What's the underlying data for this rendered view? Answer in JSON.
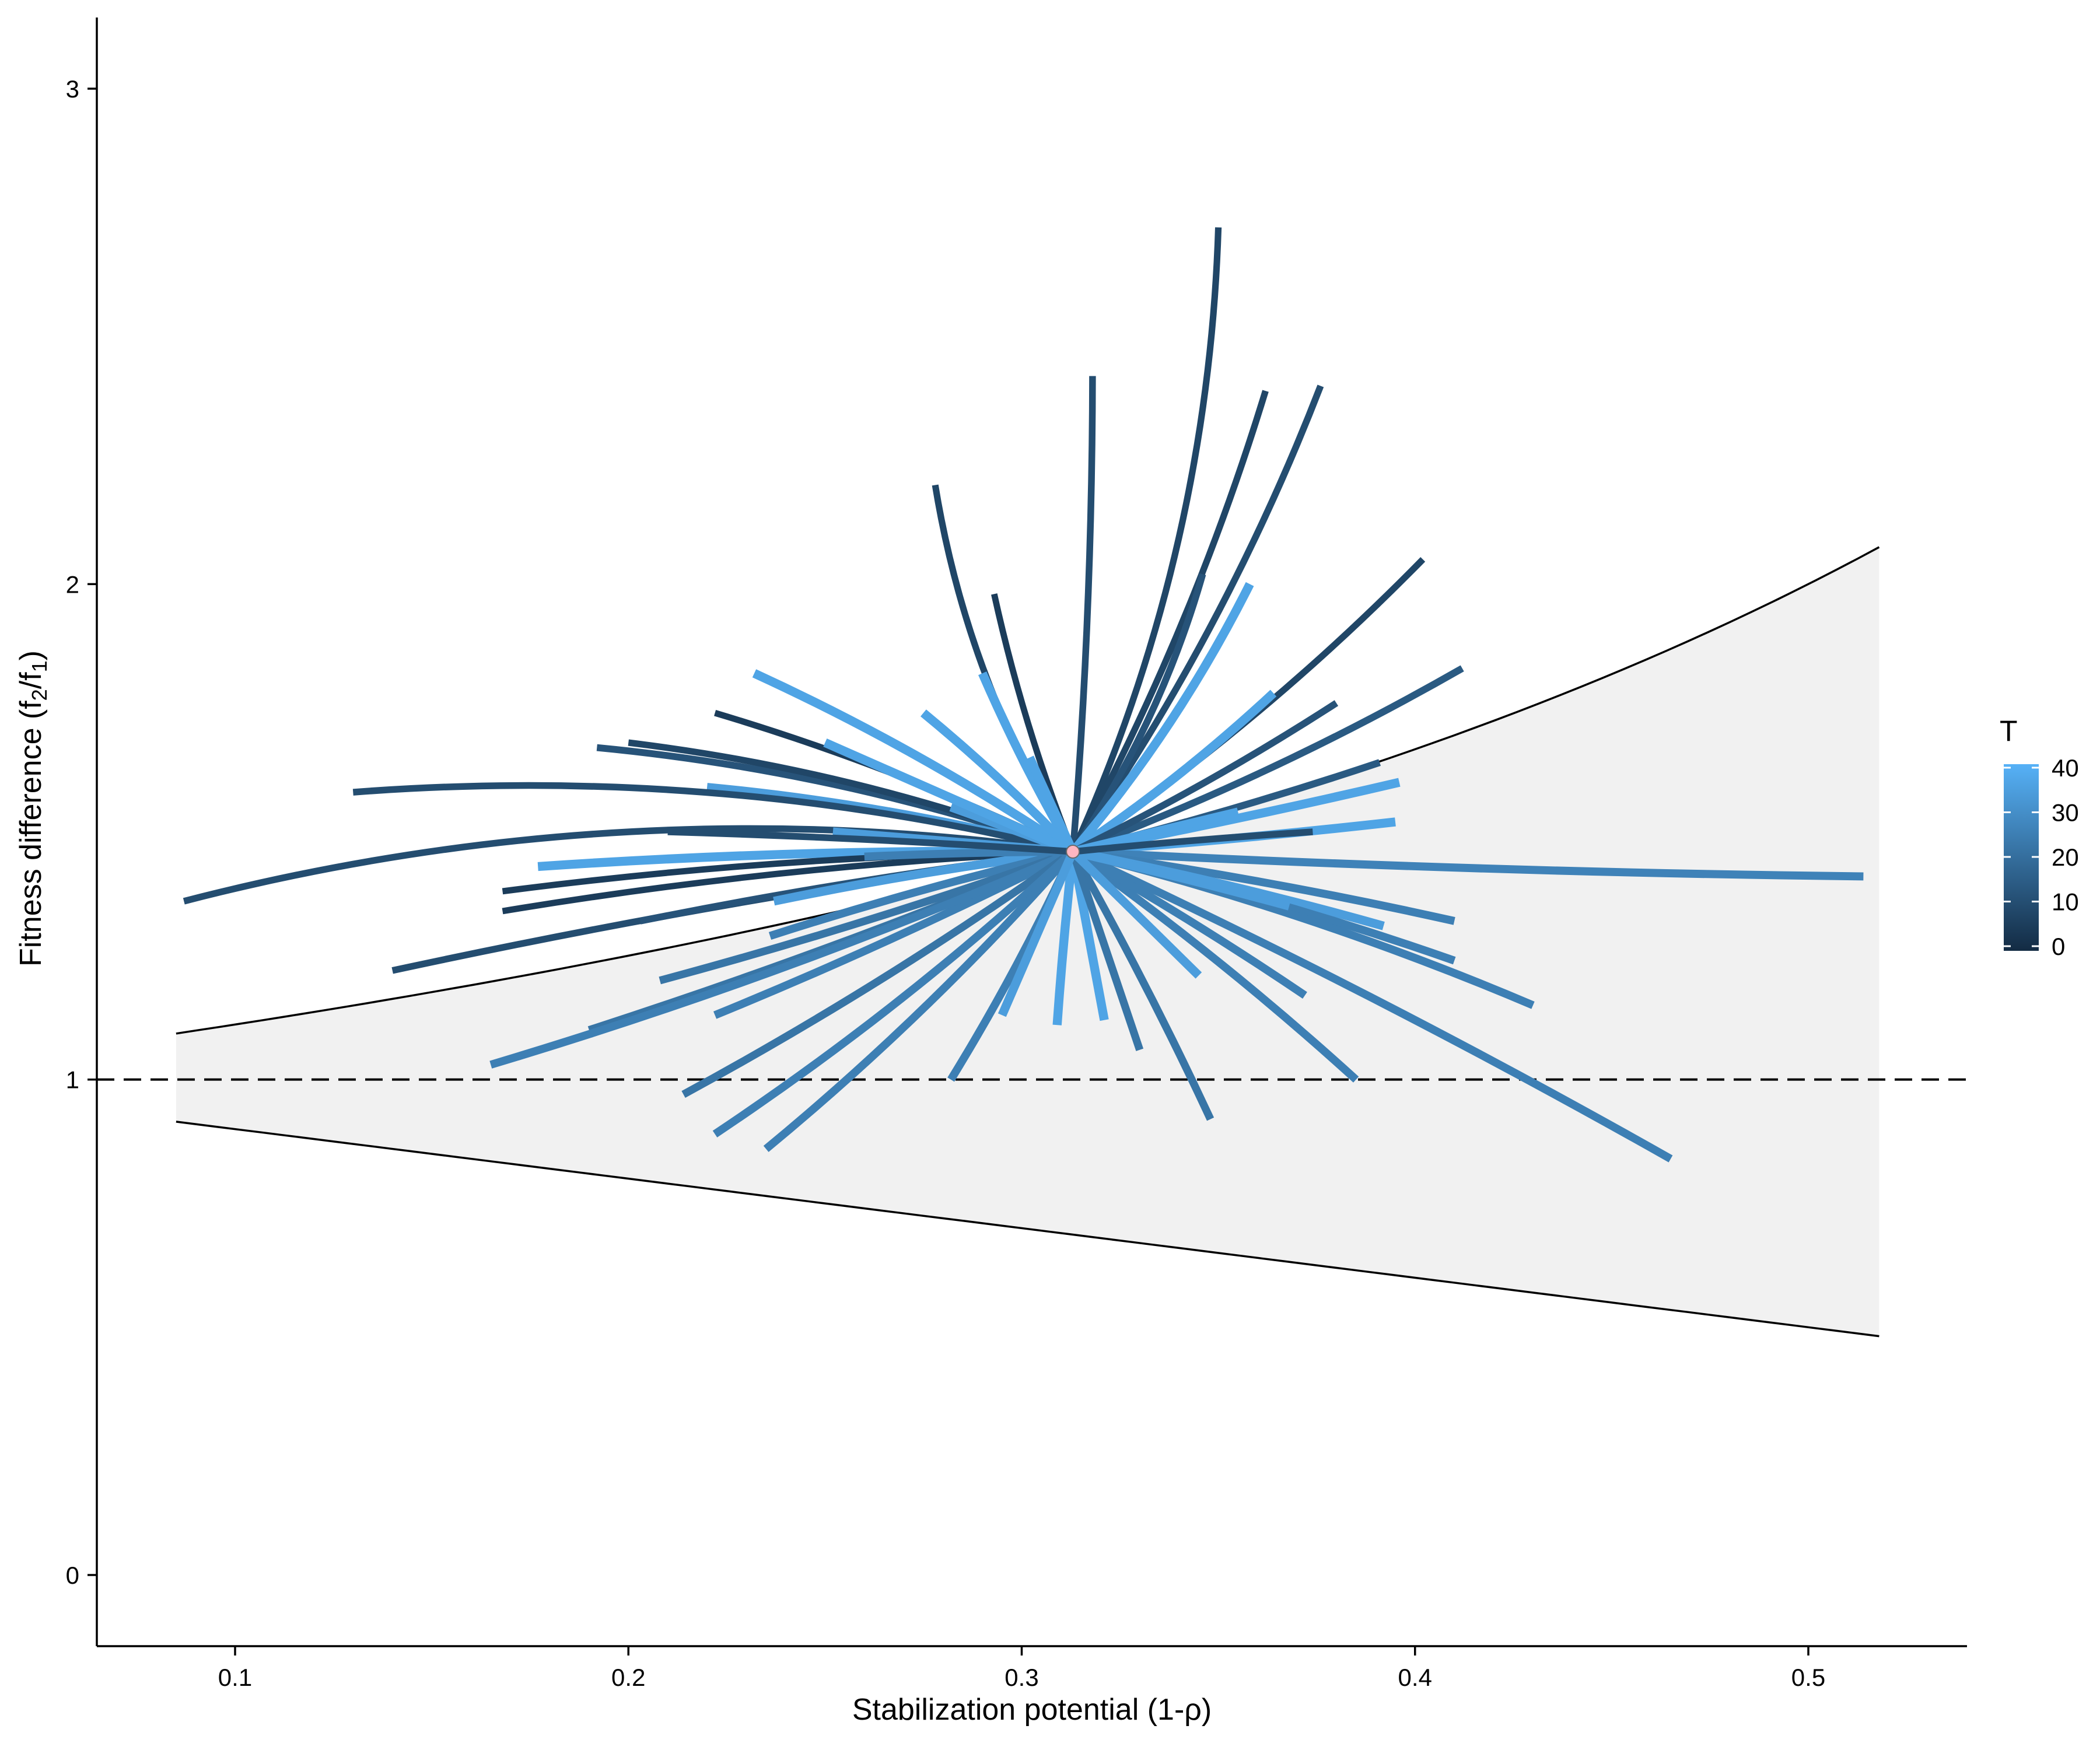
{
  "chart_data": {
    "type": "line",
    "xlabel": "Stabilization potential (1-ρ)",
    "ylabel": "Fitness difference (f2/f1)",
    "xlim": [
      0.065,
      0.54
    ],
    "ylim": [
      -0.15,
      3.15
    ],
    "x_ticks": [
      0.1,
      0.2,
      0.3,
      0.4,
      0.5
    ],
    "x_tick_labels": [
      "0.1",
      "0.2",
      "0.3",
      "0.4",
      "0.5"
    ],
    "y_ticks": [
      0,
      1,
      2,
      3
    ],
    "y_tick_labels": [
      "0",
      "1",
      "2",
      "3"
    ],
    "grid": false,
    "reference_line": {
      "y": 1,
      "style": "dashed"
    },
    "coexistence_region": {
      "x_range": [
        0.085,
        0.518
      ],
      "formula_upper": "1/(1-x)",
      "formula_lower": "1-x",
      "fill": "#f1f1f1"
    },
    "center_point": {
      "x": 0.313,
      "y": 1.46,
      "color": "#ffb6c1"
    },
    "legend": {
      "title": "T",
      "position": "right",
      "type": "colorbar",
      "range": [
        0,
        40
      ],
      "ticks": [
        0,
        10,
        20,
        30,
        40
      ],
      "tick_labels": [
        "0",
        "10",
        "20",
        "30",
        "40"
      ],
      "color_low": "#132B43",
      "color_high": "#56B1F7"
    },
    "series": [
      {
        "T": 8,
        "end": [
          0.35,
          2.72
        ],
        "bend": 0.1
      },
      {
        "T": 10,
        "end": [
          0.318,
          2.42
        ],
        "bend": 0.02
      },
      {
        "T": 8,
        "end": [
          0.362,
          2.39
        ],
        "bend": 0.05
      },
      {
        "T": 10,
        "end": [
          0.376,
          2.4
        ],
        "bend": 0.06
      },
      {
        "T": 8,
        "end": [
          0.278,
          2.2
        ],
        "bend": -0.1
      },
      {
        "T": 8,
        "end": [
          0.402,
          2.05
        ],
        "bend": 0.05
      },
      {
        "T": 5,
        "end": [
          0.293,
          1.98
        ],
        "bend": -0.04
      },
      {
        "T": 12,
        "end": [
          0.346,
          2.02
        ],
        "bend": 0.08
      },
      {
        "T": 36,
        "end": [
          0.358,
          2.0
        ],
        "bend": 0.06
      },
      {
        "T": 14,
        "end": [
          0.412,
          1.83
        ],
        "bend": 0.04
      },
      {
        "T": 36,
        "end": [
          0.232,
          1.82
        ],
        "bend": 0.04
      },
      {
        "T": 36,
        "end": [
          0.29,
          1.82
        ],
        "bend": -0.03
      },
      {
        "T": 36,
        "end": [
          0.364,
          1.78
        ],
        "bend": 0.04
      },
      {
        "T": 5,
        "end": [
          0.222,
          1.74
        ],
        "bend": 0.04
      },
      {
        "T": 36,
        "end": [
          0.275,
          1.74
        ],
        "bend": 0.03
      },
      {
        "T": 12,
        "end": [
          0.38,
          1.76
        ],
        "bend": 0.03
      },
      {
        "T": 12,
        "end": [
          0.192,
          1.67
        ],
        "bend": 0.06
      },
      {
        "T": 8,
        "end": [
          0.2,
          1.68
        ],
        "bend": 0.06
      },
      {
        "T": 14,
        "end": [
          0.391,
          1.64
        ],
        "bend": 0.02
      },
      {
        "T": 34,
        "end": [
          0.22,
          1.59
        ],
        "bend": 0.04
      },
      {
        "T": 36,
        "end": [
          0.396,
          1.6
        ],
        "bend": 0.01
      },
      {
        "T": 10,
        "end": [
          0.13,
          1.58
        ],
        "bend": 0.08
      },
      {
        "T": 36,
        "end": [
          0.395,
          1.52
        ],
        "bend": 0.01
      },
      {
        "T": 10,
        "end": [
          0.087,
          1.36
        ],
        "bend": 0.1
      },
      {
        "T": 26,
        "end": [
          0.514,
          1.41
        ],
        "bend": 0.01
      },
      {
        "T": 36,
        "end": [
          0.177,
          1.43
        ],
        "bend": 0.02
      },
      {
        "T": 5,
        "end": [
          0.168,
          1.38
        ],
        "bend": 0.03
      },
      {
        "T": 5,
        "end": [
          0.168,
          1.34
        ],
        "bend": 0.03
      },
      {
        "T": 10,
        "end": [
          0.14,
          1.22
        ],
        "bend": 0.02
      },
      {
        "T": 12,
        "end": [
          0.203,
          1.32
        ],
        "bend": 0.02
      },
      {
        "T": 34,
        "end": [
          0.237,
          1.36
        ],
        "bend": 0.02
      },
      {
        "T": 25,
        "end": [
          0.236,
          1.29
        ],
        "bend": 0.02
      },
      {
        "T": 25,
        "end": [
          0.41,
          1.32
        ],
        "bend": -0.02
      },
      {
        "T": 34,
        "end": [
          0.392,
          1.31
        ],
        "bend": -0.02
      },
      {
        "T": 25,
        "end": [
          0.41,
          1.24
        ],
        "bend": -0.03
      },
      {
        "T": 25,
        "end": [
          0.43,
          1.15
        ],
        "bend": -0.04
      },
      {
        "T": 22,
        "end": [
          0.208,
          1.2
        ],
        "bend": -0.02
      },
      {
        "T": 22,
        "end": [
          0.19,
          1.1
        ],
        "bend": -0.02
      },
      {
        "T": 25,
        "end": [
          0.222,
          1.13
        ],
        "bend": -0.02
      },
      {
        "T": 25,
        "end": [
          0.165,
          1.03
        ],
        "bend": -0.03
      },
      {
        "T": 25,
        "end": [
          0.385,
          1.0
        ],
        "bend": -0.03
      },
      {
        "T": 22,
        "end": [
          0.214,
          0.97
        ],
        "bend": -0.03
      },
      {
        "T": 25,
        "end": [
          0.282,
          1.0
        ],
        "bend": -0.03
      },
      {
        "T": 25,
        "end": [
          0.222,
          0.89
        ],
        "bend": -0.04
      },
      {
        "T": 25,
        "end": [
          0.235,
          0.86
        ],
        "bend": -0.04
      },
      {
        "T": 25,
        "end": [
          0.465,
          0.84
        ],
        "bend": -0.02
      },
      {
        "T": 22,
        "end": [
          0.348,
          0.92
        ],
        "bend": -0.02
      },
      {
        "T": 36,
        "end": [
          0.309,
          1.11
        ],
        "bend": 0.01
      },
      {
        "T": 36,
        "end": [
          0.321,
          1.12
        ],
        "bend": 0.0
      },
      {
        "T": 22,
        "end": [
          0.33,
          1.06
        ],
        "bend": 0.0
      },
      {
        "T": 34,
        "end": [
          0.295,
          1.13
        ],
        "bend": 0.0
      },
      {
        "T": 25,
        "end": [
          0.372,
          1.17
        ],
        "bend": -0.02
      },
      {
        "T": 34,
        "end": [
          0.368,
          1.35
        ],
        "bend": -0.01
      },
      {
        "T": 34,
        "end": [
          0.345,
          1.21
        ],
        "bend": 0.0
      },
      {
        "T": 34,
        "end": [
          0.252,
          1.5
        ],
        "bend": 0.0
      },
      {
        "T": 25,
        "end": [
          0.26,
          1.45
        ],
        "bend": 0.01
      },
      {
        "T": 34,
        "end": [
          0.282,
          1.55
        ],
        "bend": 0.0
      },
      {
        "T": 36,
        "end": [
          0.25,
          1.68
        ],
        "bend": 0.0
      },
      {
        "T": 36,
        "end": [
          0.302,
          1.65
        ],
        "bend": 0.0
      },
      {
        "T": 10,
        "end": [
          0.21,
          1.5
        ],
        "bend": 0.01
      },
      {
        "T": 36,
        "end": [
          0.355,
          1.54
        ],
        "bend": 0.0
      },
      {
        "T": 10,
        "end": [
          0.374,
          1.5
        ],
        "bend": -0.01
      }
    ]
  }
}
